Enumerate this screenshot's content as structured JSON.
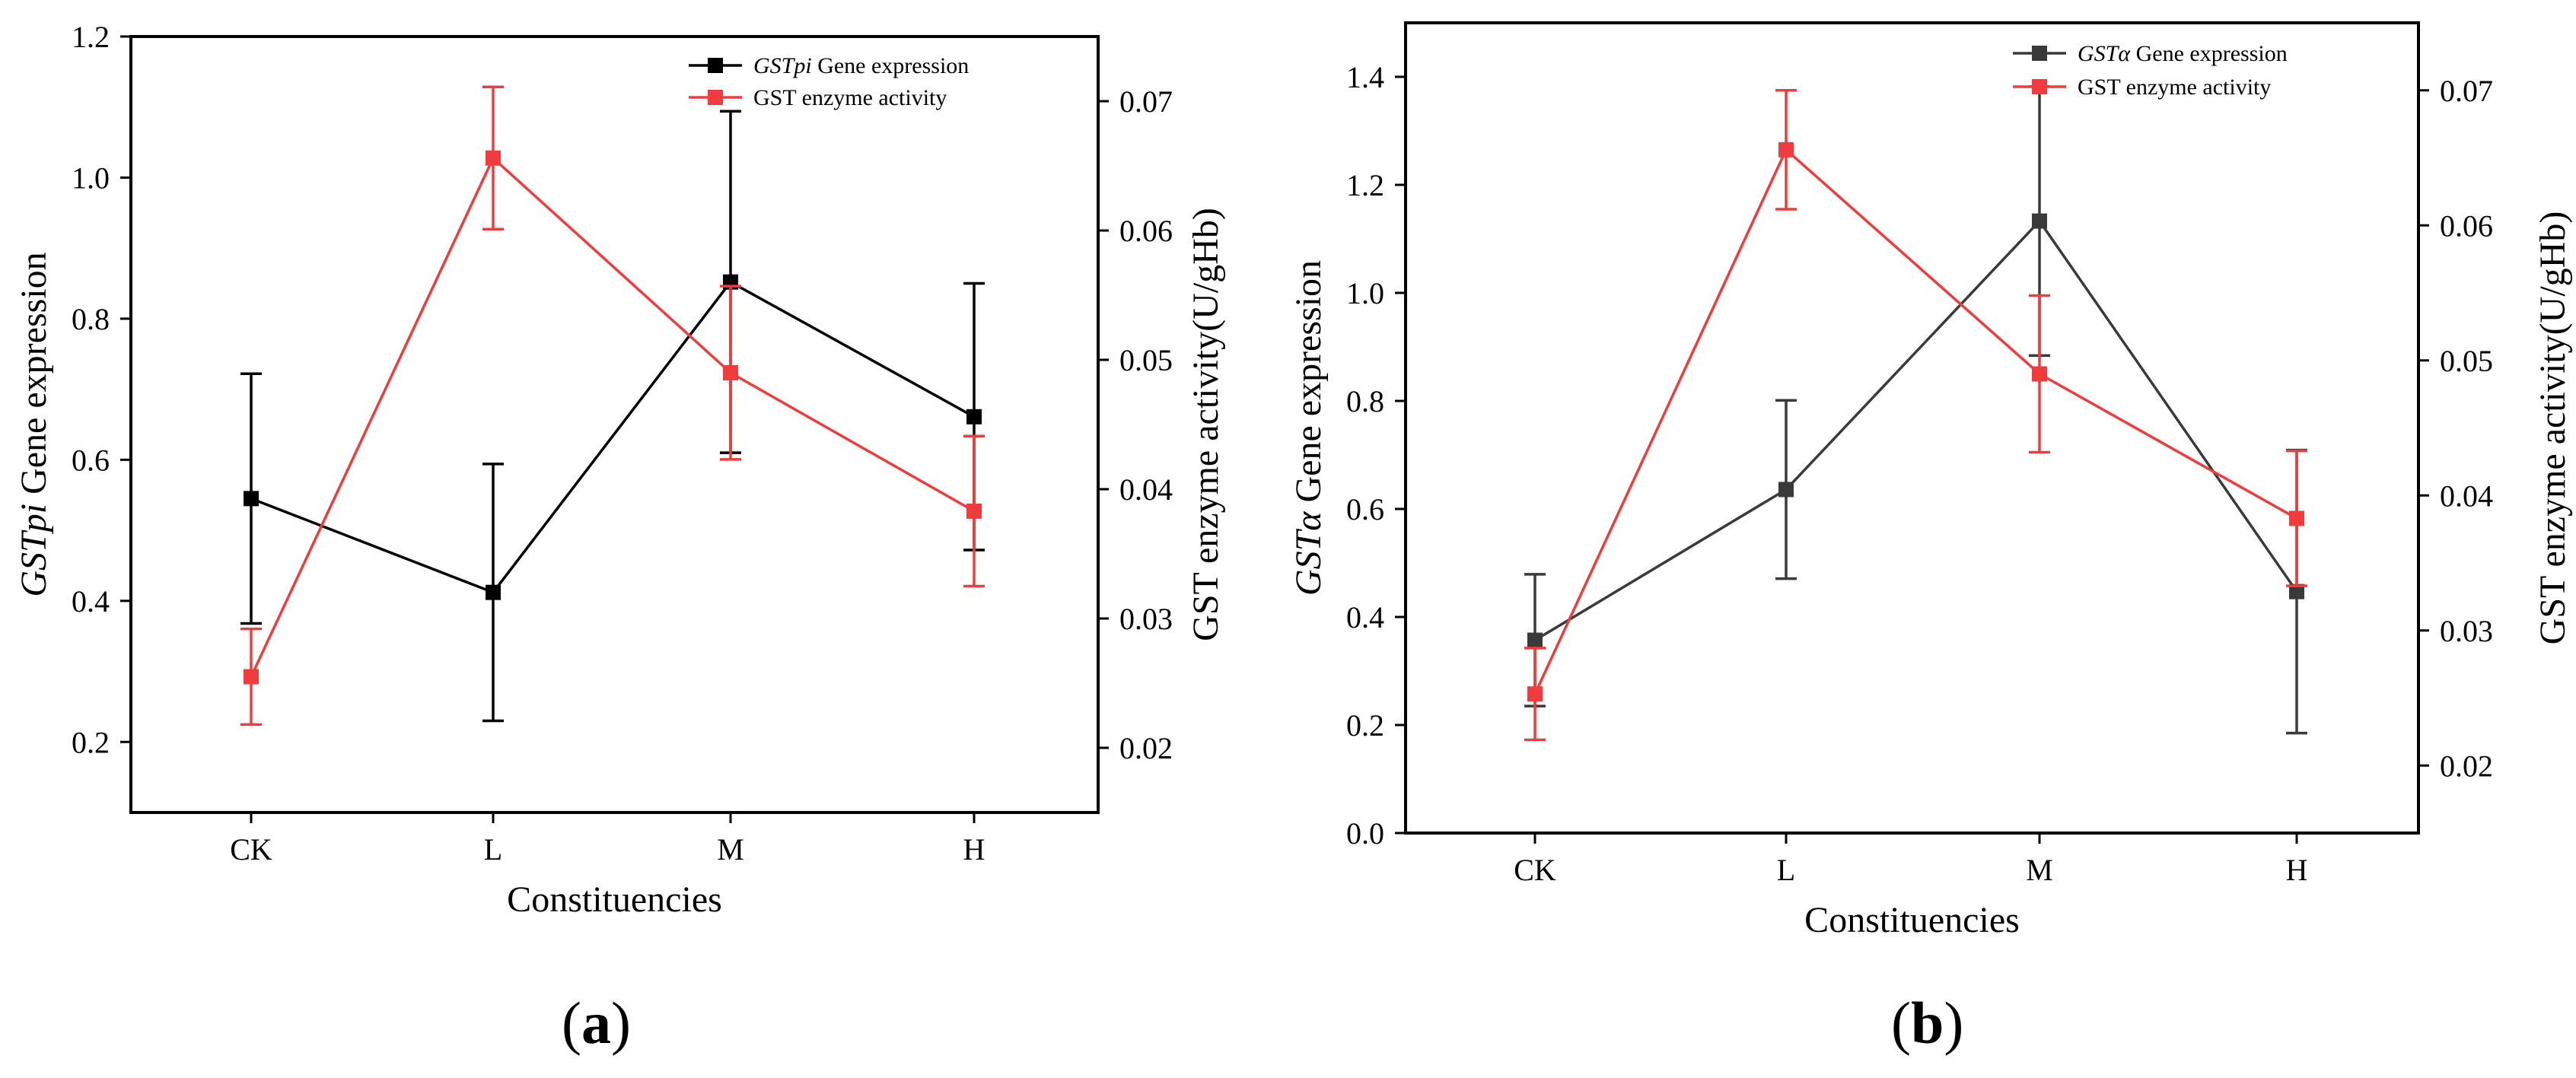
{
  "figure": {
    "panels": [
      {
        "open": "(",
        "letter": "a",
        "close": ")"
      },
      {
        "open": "(",
        "letter": "b",
        "close": ")"
      }
    ]
  },
  "chart_data": [
    {
      "type": "line",
      "categories": [
        "CK",
        "L",
        "M",
        "H"
      ],
      "xlabel": "Constituencies",
      "ylabel": {
        "italic": "GSTpi",
        "rest": " Gene expression"
      },
      "ylabel_right": "GST enzyme activity(U/gHb)",
      "ylim": [
        0.1,
        1.2
      ],
      "ylim_right": [
        0.015,
        0.075
      ],
      "yticks": [
        0.2,
        0.4,
        0.6,
        0.8,
        1.0,
        1.2
      ],
      "yticks_right": [
        0.02,
        0.03,
        0.04,
        0.05,
        0.06,
        0.07
      ],
      "ytick_labels": [
        "0.2",
        "0.4",
        "0.6",
        "0.8",
        "1.0",
        "1.2"
      ],
      "ytick_labels_right": [
        "0.02",
        "0.03",
        "0.04",
        "0.05",
        "0.06",
        "0.07"
      ],
      "legend_position": "top-right",
      "series": [
        {
          "name": {
            "italic": "GSTpi",
            "rest": " Gene expression"
          },
          "axis": "left",
          "color": "#000000",
          "values": [
            0.545,
            0.412,
            0.852,
            0.661
          ],
          "errors": [
            0.177,
            0.182,
            0.242,
            0.189
          ]
        },
        {
          "name": {
            "italic": "",
            "rest": "GST enzyme activity"
          },
          "axis": "right",
          "color": "#f03c3c",
          "values": [
            0.0255,
            0.0656,
            0.049,
            0.0383
          ],
          "errors": [
            0.0037,
            0.0055,
            0.0067,
            0.0058
          ]
        }
      ]
    },
    {
      "type": "line",
      "categories": [
        "CK",
        "L",
        "M",
        "H"
      ],
      "xlabel": "Constituencies",
      "ylabel": {
        "italic": "GSTα",
        "rest": " Gene expression"
      },
      "ylabel_right": "GST enzyme activity(U/gHb)",
      "ylim": [
        0.0,
        1.5
      ],
      "ylim_right": [
        0.015,
        0.075
      ],
      "yticks": [
        0.0,
        0.2,
        0.4,
        0.6,
        0.8,
        1.0,
        1.2,
        1.4
      ],
      "yticks_right": [
        0.02,
        0.03,
        0.04,
        0.05,
        0.06,
        0.07
      ],
      "ytick_labels": [
        "0.0",
        "0.2",
        "0.4",
        "0.6",
        "0.8",
        "1.0",
        "1.2",
        "1.4"
      ],
      "ytick_labels_right": [
        "0.02",
        "0.03",
        "0.04",
        "0.05",
        "0.06",
        "0.07"
      ],
      "legend_position": "top-right",
      "series": [
        {
          "name": {
            "italic": "GSTα",
            "rest": " Gene expression"
          },
          "axis": "left",
          "color": "#3a3a3a",
          "values": [
            0.357,
            0.636,
            1.133,
            0.447
          ],
          "errors": [
            0.122,
            0.165,
            0.249,
            0.262
          ]
        },
        {
          "name": {
            "italic": "",
            "rest": "GST enzyme activity"
          },
          "axis": "right",
          "color": "#f03c3c",
          "values": [
            0.0253,
            0.0656,
            0.049,
            0.0383
          ],
          "errors": [
            0.0034,
            0.0044,
            0.0058,
            0.005
          ]
        }
      ]
    }
  ]
}
